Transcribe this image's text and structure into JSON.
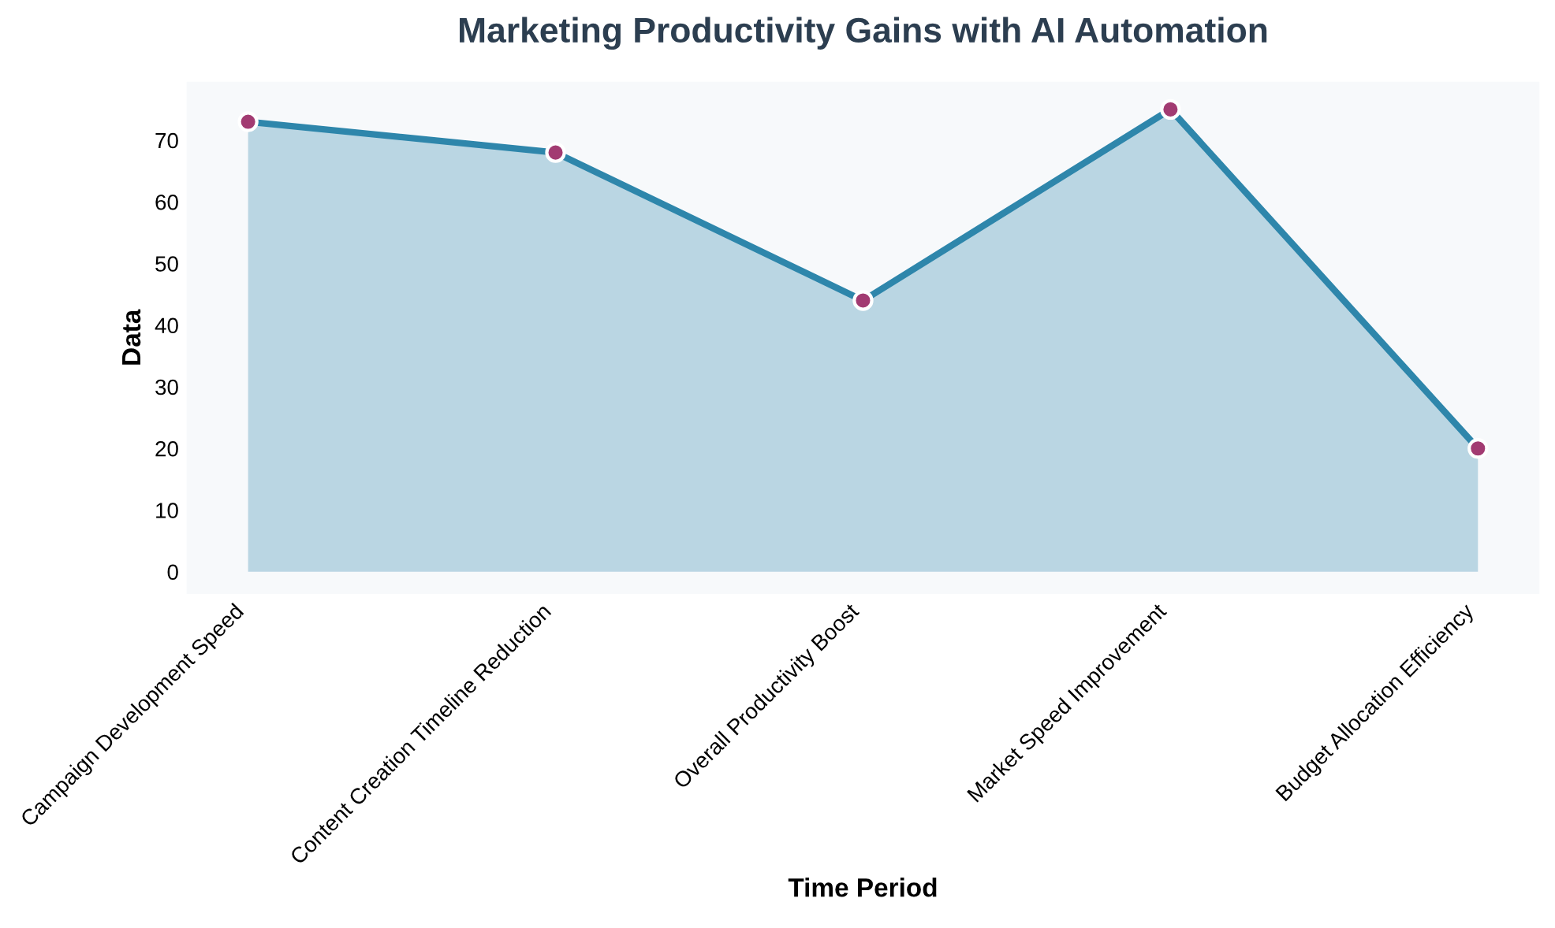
{
  "chart_data": {
    "type": "area",
    "title": "Marketing Productivity Gains with AI Automation",
    "xlabel": "Time Period",
    "ylabel": "Data",
    "categories": [
      "Campaign Development Speed",
      "Content Creation Timeline Reduction",
      "Overall Productivity Boost",
      "Market Speed Improvement",
      "Budget Allocation Efficiency"
    ],
    "series": [
      {
        "color": "#2e86ab",
        "values": [
          73,
          68,
          44,
          75,
          20
        ]
      }
    ],
    "ylim": [
      -3.6,
      79.5
    ],
    "yticks": [
      0,
      10,
      20,
      30,
      40,
      50,
      60,
      70
    ],
    "grid": false,
    "marker": "circle",
    "line_style": "solid"
  }
}
